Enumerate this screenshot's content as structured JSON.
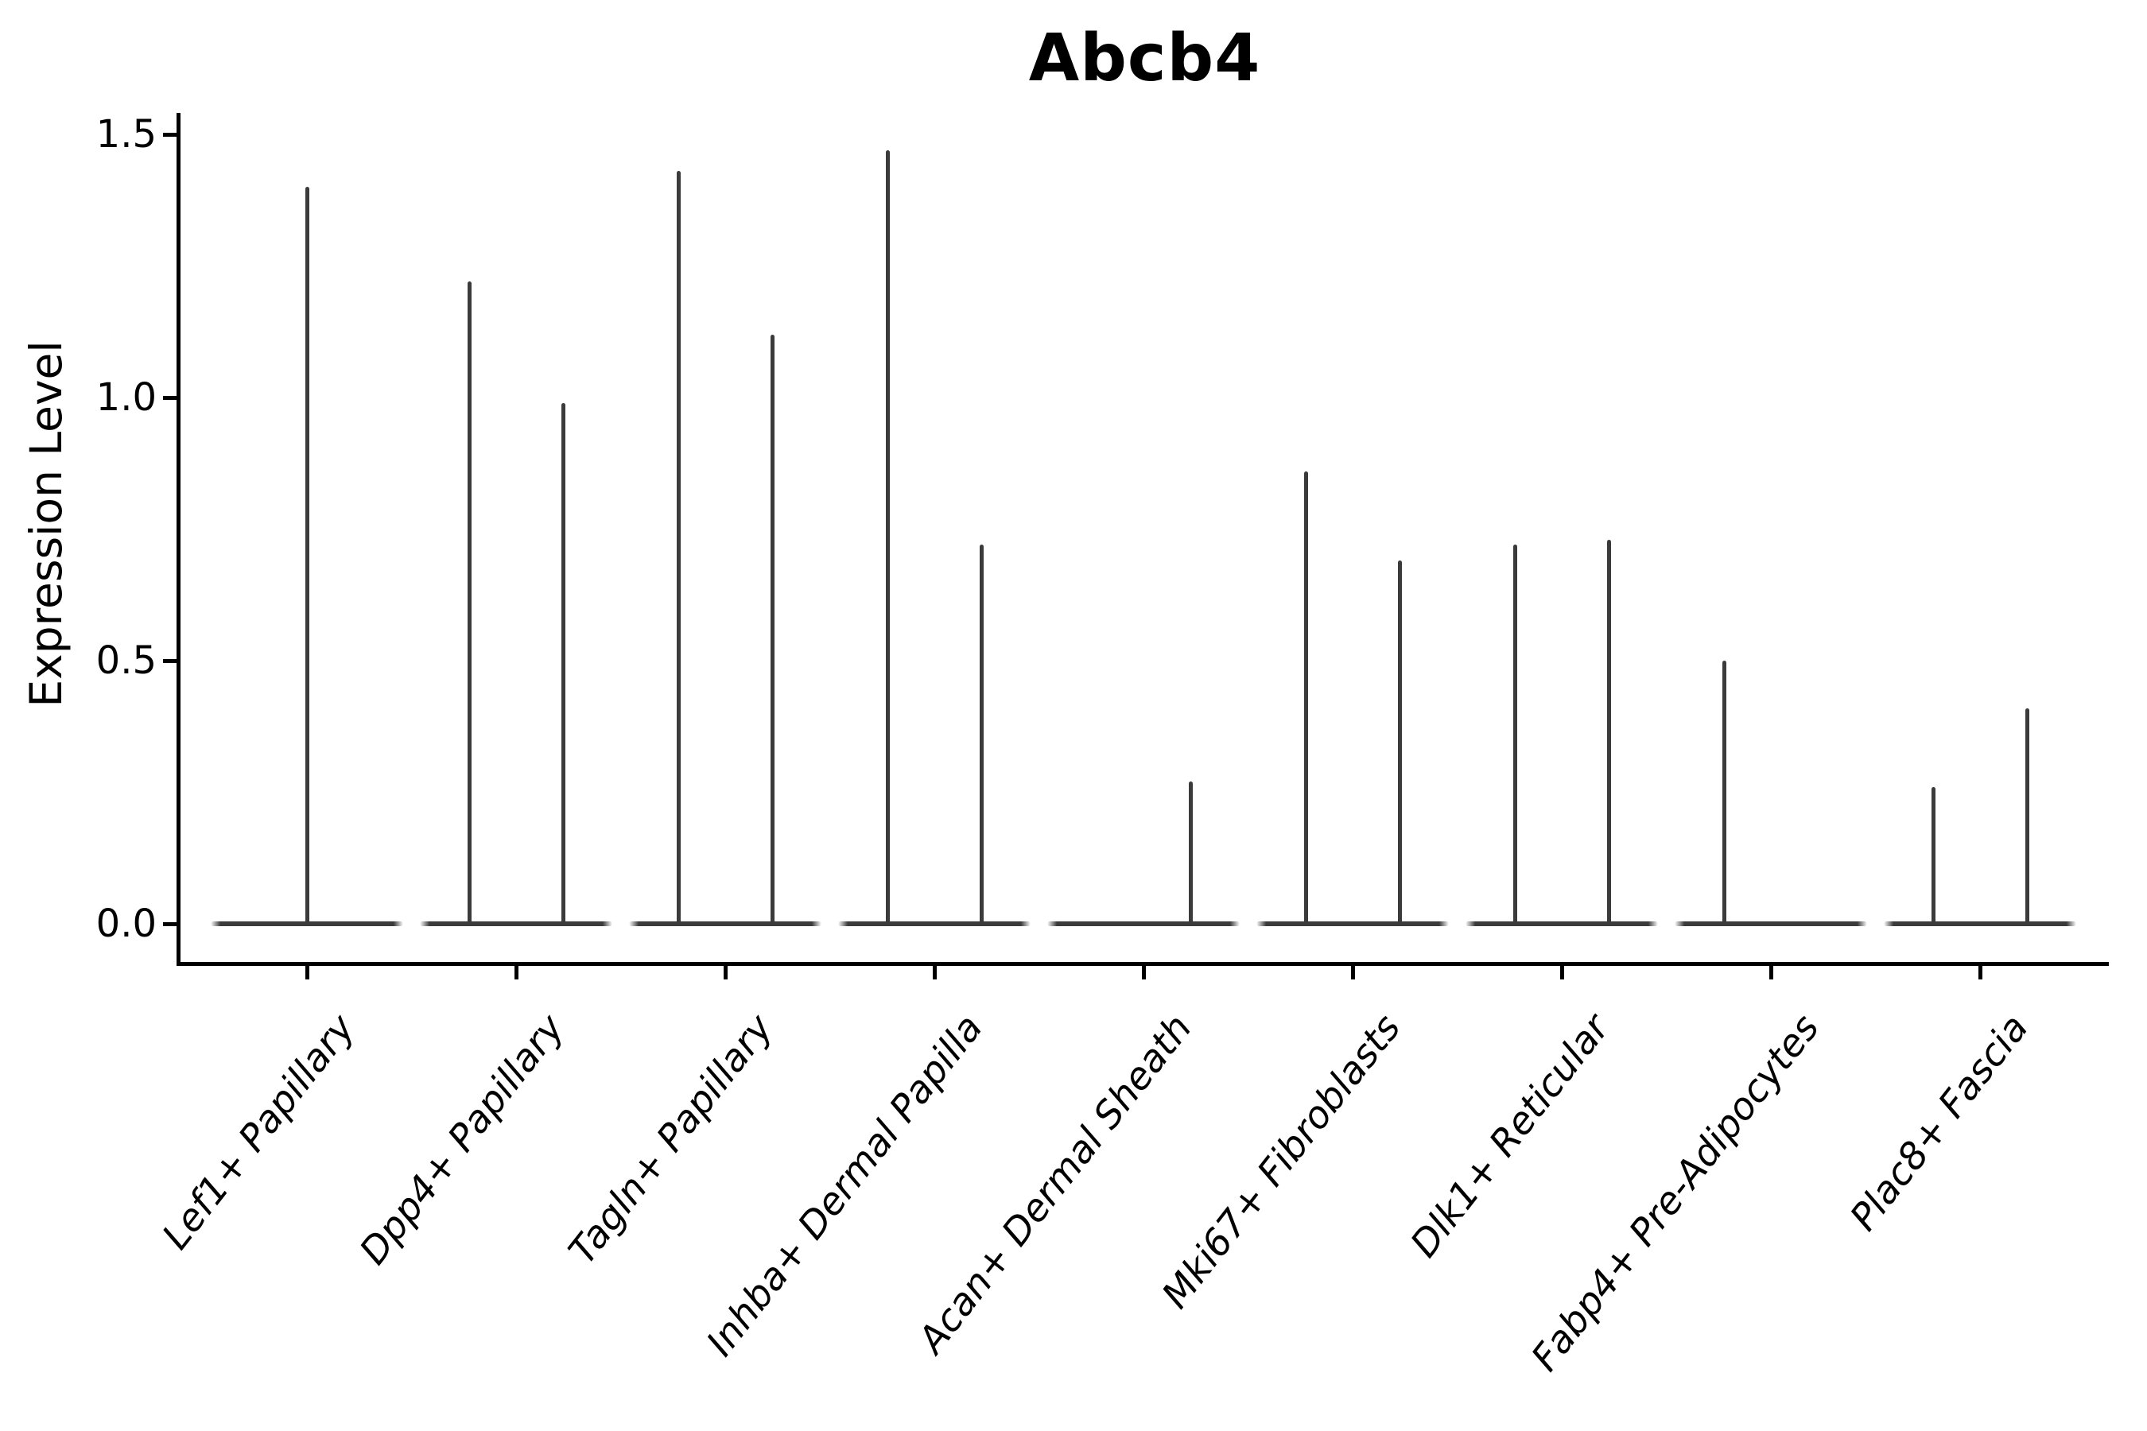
{
  "chart_data": {
    "type": "violin",
    "title": "Abcb4",
    "ylabel": "Expression Level",
    "xlabel": "",
    "ylim": [
      0,
      1.5
    ],
    "grid": false,
    "legend": "none",
    "x_label_rotation_deg": 52,
    "x_label_style": "italic",
    "ytick_labels": [
      "0.0",
      "0.5",
      "1.0",
      "1.5"
    ],
    "ytick_values": [
      0.0,
      0.5,
      1.0,
      1.5
    ],
    "categories": [
      "Lef1+ Papillary",
      "Dpp4+ Papillary",
      "Tagln+ Papillary",
      "Inhba+ Dermal Papilla",
      "Acan+ Dermal Sheath",
      "Mki67+ Fibroblasts",
      "Dlk1+ Reticular",
      "Fabp4+ Pre-Adipocytes",
      "Plac8+ Fascia"
    ],
    "violins": [
      {
        "category": "Lef1+ Papillary",
        "spikes": [
          {
            "position": "center",
            "max": 1.4
          }
        ]
      },
      {
        "category": "Dpp4+ Papillary",
        "spikes": [
          {
            "position": "left",
            "max": 1.22
          },
          {
            "position": "right",
            "max": 0.99
          }
        ]
      },
      {
        "category": "Tagln+ Papillary",
        "spikes": [
          {
            "position": "left",
            "max": 1.43
          },
          {
            "position": "right",
            "max": 1.12
          }
        ]
      },
      {
        "category": "Inhba+ Dermal Papilla",
        "spikes": [
          {
            "position": "left",
            "max": 1.47
          },
          {
            "position": "right",
            "max": 0.72
          }
        ]
      },
      {
        "category": "Acan+ Dermal Sheath",
        "spikes": [
          {
            "position": "right",
            "max": 0.27
          }
        ]
      },
      {
        "category": "Mki67+ Fibroblasts",
        "spikes": [
          {
            "position": "left",
            "max": 0.86
          },
          {
            "position": "right",
            "max": 0.69
          }
        ]
      },
      {
        "category": "Dlk1+ Reticular",
        "spikes": [
          {
            "position": "left",
            "max": 0.72
          },
          {
            "position": "right",
            "max": 0.73
          }
        ]
      },
      {
        "category": "Fabp4+ Pre-Adipocytes",
        "spikes": [
          {
            "position": "left",
            "max": 0.5
          }
        ]
      },
      {
        "category": "Plac8+ Fascia",
        "spikes": [
          {
            "position": "left",
            "max": 0.26
          },
          {
            "position": "right",
            "max": 0.41
          }
        ]
      }
    ],
    "colors": {
      "violin": "#3b3b3b",
      "axis": "#000000",
      "text": "#000000",
      "background": "#ffffff"
    }
  }
}
